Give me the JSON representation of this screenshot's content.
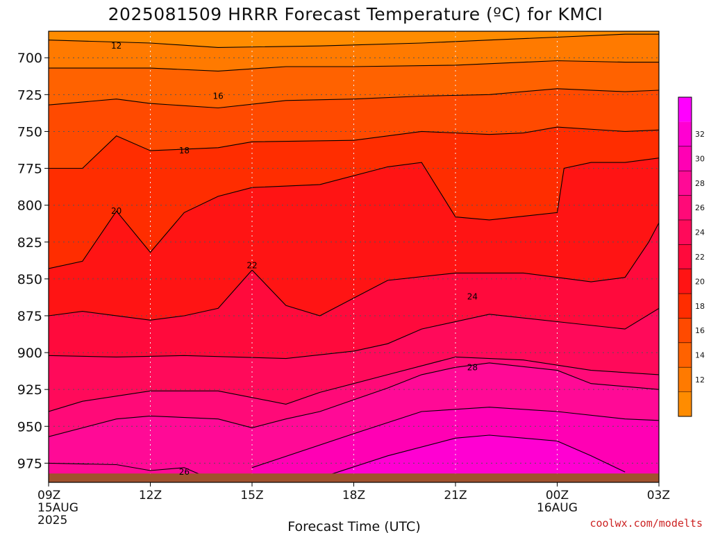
{
  "chart_data": {
    "type": "contour",
    "title": "2025081509 HRRR Forecast Temperature (ºC) for KMCI",
    "xlabel": "Forecast Time (UTC)",
    "credit": "coolwx.com/modelts",
    "x_ticks": [
      {
        "hour": 0,
        "label": "09Z",
        "sub1": "15AUG",
        "sub2": "2025"
      },
      {
        "hour": 3,
        "label": "12Z",
        "sub1": "",
        "sub2": ""
      },
      {
        "hour": 6,
        "label": "15Z",
        "sub1": "",
        "sub2": ""
      },
      {
        "hour": 9,
        "label": "18Z",
        "sub1": "",
        "sub2": ""
      },
      {
        "hour": 12,
        "label": "21Z",
        "sub1": "",
        "sub2": ""
      },
      {
        "hour": 15,
        "label": "00Z",
        "sub1": "16AUG",
        "sub2": ""
      },
      {
        "hour": 18,
        "label": "03Z",
        "sub1": "",
        "sub2": ""
      }
    ],
    "y_ticks": [
      {
        "p": 700,
        "label": "700"
      },
      {
        "p": 725,
        "label": "725"
      },
      {
        "p": 750,
        "label": "750"
      },
      {
        "p": 775,
        "label": "775"
      },
      {
        "p": 800,
        "label": "800"
      },
      {
        "p": 825,
        "label": "825"
      },
      {
        "p": 850,
        "label": "850"
      },
      {
        "p": 875,
        "label": "875"
      },
      {
        "p": 900,
        "label": "900"
      },
      {
        "p": 925,
        "label": "925"
      },
      {
        "p": 950,
        "label": "950"
      },
      {
        "p": 975,
        "label": "975"
      }
    ],
    "xlim_hours": [
      0,
      18
    ],
    "ylim_hpa": [
      682,
      988
    ],
    "ground_hpa": 982,
    "grid": true,
    "colorbar": {
      "placement": "right",
      "levels": [
        10,
        12,
        14,
        16,
        18,
        20,
        22,
        24,
        26,
        28,
        30,
        32,
        34
      ],
      "colors": [
        "#ff8c00",
        "#ff7a00",
        "#ff6200",
        "#ff4a00",
        "#ff2d00",
        "#ff1414",
        "#ff0a3c",
        "#ff0a5a",
        "#ff0a78",
        "#ff0a96",
        "#ff00b4",
        "#ff00d2",
        "#ff00ff"
      ],
      "tick_labels": [
        "12",
        "14",
        "16",
        "18",
        "20",
        "22",
        "24",
        "26",
        "28",
        "30",
        "32"
      ]
    },
    "isotherms": [
      {
        "level": 12,
        "label": "12",
        "label_at": [
          2.0,
          692
        ],
        "points": [
          [
            0,
            688
          ],
          [
            3,
            690
          ],
          [
            5,
            693
          ],
          [
            8,
            692
          ],
          [
            11,
            690
          ],
          [
            13,
            688
          ],
          [
            15,
            686
          ],
          [
            17,
            684
          ],
          [
            18,
            684
          ]
        ]
      },
      {
        "level": 14,
        "label": "",
        "points": [
          [
            0,
            707
          ],
          [
            3,
            707
          ],
          [
            5,
            709
          ],
          [
            7,
            706
          ],
          [
            9,
            706
          ],
          [
            12,
            705
          ],
          [
            15,
            702
          ],
          [
            17,
            703
          ],
          [
            18,
            703
          ]
        ]
      },
      {
        "level": 16,
        "label": "16",
        "label_at": [
          5.0,
          726
        ],
        "points": [
          [
            0,
            732
          ],
          [
            2,
            728
          ],
          [
            3,
            731
          ],
          [
            5,
            734
          ],
          [
            7,
            729
          ],
          [
            9,
            728
          ],
          [
            11,
            726
          ],
          [
            13,
            725
          ],
          [
            15,
            721
          ],
          [
            17,
            723
          ],
          [
            18,
            722
          ]
        ]
      },
      {
        "level": 18,
        "label": "18",
        "label_at": [
          4.0,
          763
        ],
        "points": [
          [
            0,
            775
          ],
          [
            1,
            775
          ],
          [
            2,
            753
          ],
          [
            3,
            763
          ],
          [
            5,
            761
          ],
          [
            6,
            757
          ],
          [
            9,
            756
          ],
          [
            11,
            750
          ],
          [
            13,
            752
          ],
          [
            14,
            751
          ],
          [
            15,
            747
          ],
          [
            17,
            750
          ],
          [
            18,
            749
          ]
        ]
      },
      {
        "level": 20,
        "label": "20",
        "label_at": [
          2.0,
          804
        ],
        "points": [
          [
            0,
            843
          ],
          [
            1,
            838
          ],
          [
            2,
            804
          ],
          [
            3,
            832
          ],
          [
            4,
            805
          ],
          [
            5,
            794
          ],
          [
            6,
            788
          ],
          [
            8,
            786
          ],
          [
            10,
            774
          ],
          [
            11,
            771
          ],
          [
            12,
            808
          ],
          [
            13,
            810
          ],
          [
            15,
            805
          ],
          [
            15.2,
            775
          ],
          [
            16,
            771
          ],
          [
            17,
            771
          ],
          [
            18,
            768
          ]
        ]
      },
      {
        "level": 22,
        "label": "22",
        "label_at": [
          6.0,
          841
        ],
        "points": [
          [
            0,
            875
          ],
          [
            1,
            872
          ],
          [
            3,
            878
          ],
          [
            4,
            875
          ],
          [
            5,
            870
          ],
          [
            6,
            844
          ],
          [
            7,
            868
          ],
          [
            8,
            875
          ],
          [
            10,
            851
          ],
          [
            12,
            846
          ],
          [
            14,
            846
          ],
          [
            15,
            849
          ],
          [
            16,
            852
          ],
          [
            17,
            849
          ],
          [
            17.7,
            825
          ],
          [
            18,
            812
          ]
        ]
      },
      {
        "level": 24,
        "label": "24",
        "label_at": [
          12.5,
          862
        ],
        "points": [
          [
            0,
            902
          ],
          [
            2,
            903
          ],
          [
            4,
            902
          ],
          [
            7,
            904
          ],
          [
            9,
            899
          ],
          [
            10,
            894
          ],
          [
            11,
            884
          ],
          [
            13,
            874
          ],
          [
            15,
            879
          ],
          [
            17,
            884
          ],
          [
            18,
            870
          ]
        ]
      },
      {
        "level": 26,
        "label": "",
        "points": [
          [
            0,
            940
          ],
          [
            1,
            933
          ],
          [
            3,
            926
          ],
          [
            5,
            926
          ],
          [
            7,
            935
          ],
          [
            8,
            927
          ],
          [
            10,
            915
          ],
          [
            12,
            903
          ],
          [
            14,
            905
          ],
          [
            16,
            912
          ],
          [
            18,
            915
          ]
        ]
      },
      {
        "level": 28,
        "label": "28",
        "label_at": [
          12.5,
          910
        ],
        "points": [
          [
            0,
            957
          ],
          [
            2,
            945
          ],
          [
            3,
            943
          ],
          [
            5,
            945
          ],
          [
            6,
            951
          ],
          [
            7,
            945
          ],
          [
            8,
            940
          ],
          [
            9,
            932
          ],
          [
            10,
            924
          ],
          [
            11,
            915
          ],
          [
            12,
            910
          ],
          [
            13,
            907
          ],
          [
            15,
            912
          ],
          [
            16,
            921
          ],
          [
            18,
            925
          ]
        ]
      },
      {
        "level": 30,
        "label": "",
        "points": [
          [
            6,
            978
          ],
          [
            9,
            955
          ],
          [
            11,
            940
          ],
          [
            13,
            937
          ],
          [
            15,
            940
          ],
          [
            17,
            945
          ],
          [
            18,
            946
          ]
        ]
      },
      {
        "level": 32,
        "label": "",
        "points": [
          [
            8,
            985
          ],
          [
            10,
            970
          ],
          [
            12,
            958
          ],
          [
            13,
            956
          ],
          [
            15,
            960
          ],
          [
            16,
            970
          ],
          [
            17,
            981
          ]
        ]
      },
      {
        "level": 26,
        "label": "26",
        "label_at": [
          4.0,
          981
        ],
        "points": [
          [
            0,
            975
          ],
          [
            2,
            976
          ],
          [
            3,
            980
          ],
          [
            4,
            978
          ],
          [
            4.5,
            983
          ]
        ]
      }
    ],
    "fill_bands": [
      {
        "level": 10,
        "color": "#ff8c00",
        "upper": 682,
        "lower_ref": 12
      },
      {
        "level": 12,
        "color": "#ff7a00",
        "upper_ref": 12,
        "lower_ref": 14
      },
      {
        "level": 14,
        "color": "#ff6200",
        "upper_ref": 14,
        "lower_ref": 16
      },
      {
        "level": 16,
        "color": "#ff4a00",
        "upper_ref": 16,
        "lower_ref": 18
      },
      {
        "level": 18,
        "color": "#ff2d00",
        "upper_ref": 18,
        "lower_ref": 20
      },
      {
        "level": 20,
        "color": "#ff1414",
        "upper_ref": 20,
        "lower_ref": 22
      },
      {
        "level": 22,
        "color": "#ff0a3c",
        "upper_ref": 22,
        "lower_ref": 24
      },
      {
        "level": 24,
        "color": "#ff0a5a",
        "upper_ref": 24,
        "lower_ref": 26
      },
      {
        "level": 26,
        "color": "#ff0a78",
        "upper_ref": 26,
        "lower_ref": 28
      },
      {
        "level": 28,
        "color": "#ff0a96",
        "upper_ref": 28,
        "lower_ref": 30
      },
      {
        "level": 30,
        "color": "#ff00b4",
        "upper_ref": 30,
        "lower_ref": 32
      },
      {
        "level": 32,
        "color": "#ff00d2",
        "upper_ref": 32,
        "lower_ref": 32
      },
      {
        "level": 33,
        "color": "#ff00ff",
        "upper_ref": 32,
        "lower_ref": 32
      }
    ],
    "ground_color": "#a0522d"
  }
}
